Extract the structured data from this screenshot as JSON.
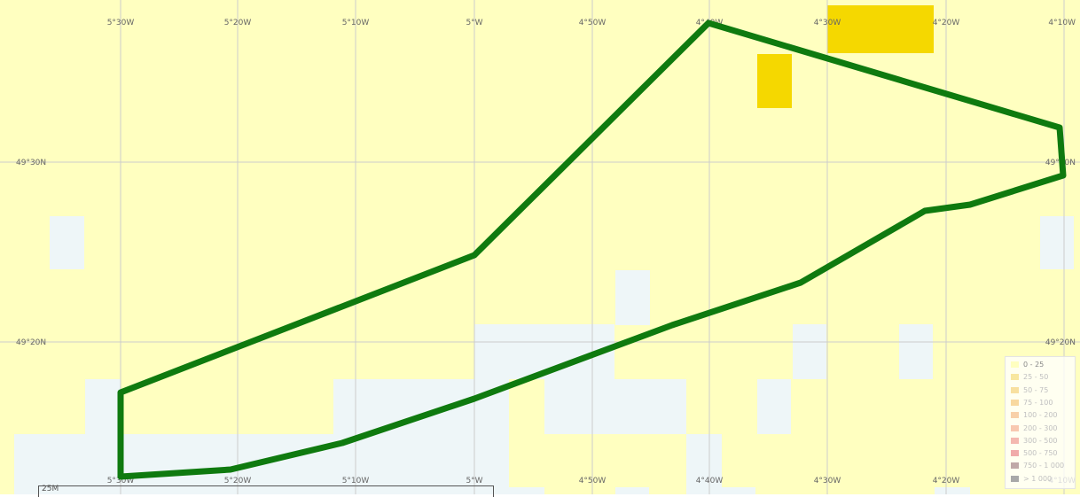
{
  "map": {
    "lon_labels": [
      "5°30W",
      "5°20W",
      "5°10W",
      "5°W",
      "4°50W",
      "4°40W",
      "4°30W",
      "4°20W",
      "4°10W"
    ],
    "lat_labels": [
      "49°30N",
      "49°20N"
    ],
    "colors": {
      "background": "#ffffc0",
      "low_cells": "#eef6f8",
      "high_cells": "#f5d800",
      "outline": "#0f7a0f",
      "grid": "#cccccc"
    }
  },
  "legend": {
    "items": [
      {
        "label": "0 - 25",
        "color": "#ffffc0"
      },
      {
        "label": "25 - 50",
        "color": "#f8e7a0"
      },
      {
        "label": "50 - 75",
        "color": "#f8e0a0"
      },
      {
        "label": "75 - 100",
        "color": "#f8d8a0"
      },
      {
        "label": "100 - 200",
        "color": "#f8d0a8"
      },
      {
        "label": "200 - 300",
        "color": "#f8c8b0"
      },
      {
        "label": "300 - 500",
        "color": "#f4b8b0"
      },
      {
        "label": "500 - 750",
        "color": "#f0aaaa"
      },
      {
        "label": "750 - 1 000",
        "color": "#c0a8a8"
      },
      {
        "label": "> 1 000",
        "color": "#a8a8a8"
      }
    ]
  },
  "scale": {
    "label": "25M"
  }
}
